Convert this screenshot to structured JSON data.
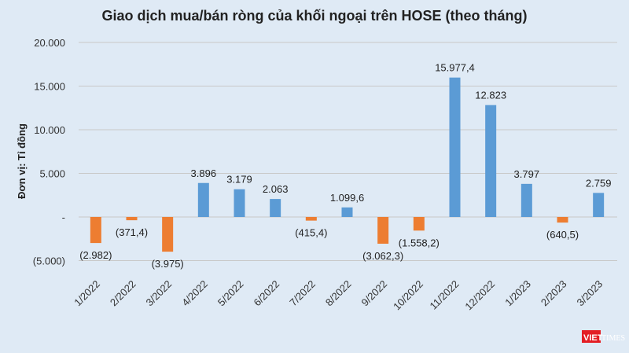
{
  "chart_data": {
    "type": "bar",
    "title": "Giao dịch mua/bán ròng của khối ngoại trên HOSE (theo tháng)",
    "ylabel": "Đơn vị: Tỉ đồng",
    "xlabel": "",
    "ylim": [
      -5000,
      20000
    ],
    "yticks": [
      20000,
      15000,
      10000,
      5000,
      0,
      -5000
    ],
    "ytick_labels": [
      "20.000",
      "15.000",
      "10.000",
      "5.000",
      "-",
      "(5.000)"
    ],
    "grid": true,
    "categories": [
      "1/2022",
      "2/2022",
      "3/2022",
      "4/2022",
      "5/2022",
      "6/2022",
      "7/2022",
      "8/2022",
      "9/2022",
      "10/2022",
      "11/2022",
      "12/2022",
      "1/2023",
      "2/2023",
      "3/2023"
    ],
    "values": [
      -2982,
      -371.4,
      -3975,
      3896,
      3179,
      2063,
      -415.4,
      1099.6,
      -3062.3,
      -1558.2,
      15977.4,
      12823,
      3797,
      -640.5,
      2759
    ],
    "data_labels": [
      "(2.982)",
      "(371,4)",
      "(3.975)",
      "3.896",
      "3.179",
      "2.063",
      "(415,4)",
      "1.099,6",
      "(3.062,3)",
      "(1.558,2)",
      "15.977,4",
      "12.823",
      "3.797",
      "(640,5)",
      "2.759"
    ],
    "colors": {
      "positive": "#5b9bd5",
      "negative": "#ed7d31"
    }
  },
  "watermark": {
    "brand": "VIETTIMES"
  }
}
